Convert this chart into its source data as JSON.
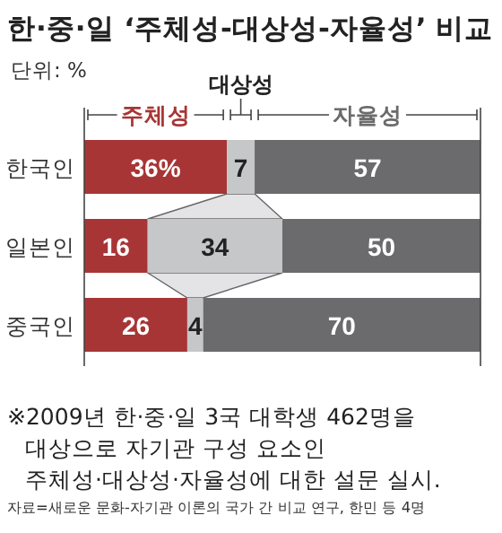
{
  "chart_data": {
    "type": "bar",
    "orientation": "horizontal",
    "stacked": true,
    "title": "한·중·일 ‘주체성-대상성-자율성’ 비교",
    "subtitle": "단위: %",
    "categories": [
      "한국인",
      "일본인",
      "중국인"
    ],
    "xlim": [
      0,
      100
    ],
    "tick_labels": "y",
    "legend": "top",
    "series": [
      {
        "name": "주체성",
        "color": "#a83535",
        "values": [
          36,
          16,
          26
        ],
        "value_labels": [
          "36%",
          "16",
          "26"
        ]
      },
      {
        "name": "대상성",
        "color": "#c6c7c9",
        "values": [
          7,
          34,
          4
        ],
        "value_labels": [
          "7",
          "34",
          "4"
        ]
      },
      {
        "name": "자율성",
        "color": "#6b6b6d",
        "values": [
          57,
          50,
          70
        ],
        "value_labels": [
          "57",
          "50",
          "70"
        ]
      }
    ],
    "annotations": [
      "※2009년 한·중·일 3국 대학생 462명을 대상으로 자기관 구성 요소인 주체성·대상성·자율성에 대한 설문 실시.",
      "자료=새로운 문화-자기관 이론의 국가 간 비교 연구, 한민 등 4명"
    ]
  }
}
